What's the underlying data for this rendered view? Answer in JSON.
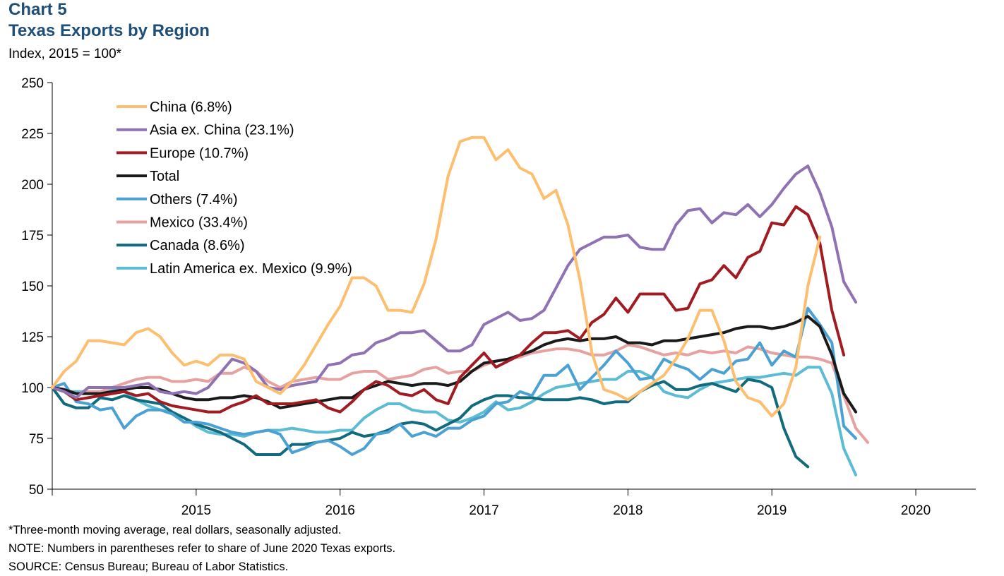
{
  "header": {
    "chart_number": "Chart 5",
    "title": "Texas Exports by Region",
    "subtitle": "Index, 2015 = 100*"
  },
  "notes": {
    "footnote": "*Three-month moving average, real dollars, seasonally adjusted.",
    "note": "NOTE: Numbers in parentheses refer to share of June 2020 Texas exports.",
    "source": "SOURCE: Census Bureau; Bureau of Labor Statistics."
  },
  "chart_data": {
    "type": "line",
    "ylim": [
      50,
      250
    ],
    "yticks": [
      50,
      75,
      100,
      125,
      150,
      175,
      200,
      225,
      250
    ],
    "xlim": [
      "2014-07",
      "2020-12"
    ],
    "x_start": "2014-07",
    "xticks": [
      {
        "label": "2015",
        "x": "2015-07"
      },
      {
        "label": "2016",
        "x": "2016-07"
      },
      {
        "label": "2017",
        "x": "2017-07"
      },
      {
        "label": "2018",
        "x": "2018-07"
      },
      {
        "label": "2019",
        "x": "2019-07"
      },
      {
        "label": "2020",
        "x": "2020-07"
      }
    ],
    "grid": false,
    "legend_position": "top-left",
    "series": [
      {
        "name": "China (6.8%)",
        "color": "#fbbf6f",
        "values": [
          100,
          108,
          113,
          123,
          123,
          122,
          121,
          127,
          129,
          125,
          117,
          111,
          113,
          111,
          116,
          116,
          114,
          103,
          100,
          97,
          103,
          111,
          121,
          131,
          140,
          154,
          154,
          150,
          138,
          138,
          137,
          151,
          173,
          204,
          221,
          223,
          223,
          212,
          217,
          208,
          205,
          193,
          197,
          180,
          153,
          117,
          99,
          97,
          94,
          98,
          102,
          106,
          114,
          124,
          138,
          138,
          123,
          103,
          95,
          93,
          86,
          92,
          110,
          150,
          174
        ]
      },
      {
        "name": "Asia ex. China (23.1%)",
        "color": "#8f72b2",
        "values": [
          100,
          98,
          95,
          100,
          100,
          100,
          100,
          101,
          102,
          98,
          97,
          98,
          97,
          100,
          107,
          114,
          112,
          108,
          100,
          99,
          101,
          102,
          103,
          111,
          112,
          116,
          117,
          122,
          124,
          127,
          127,
          128,
          123,
          118,
          118,
          121,
          131,
          134,
          137,
          133,
          134,
          138,
          149,
          160,
          168,
          171,
          174,
          174,
          175,
          169,
          168,
          168,
          180,
          187,
          188,
          181,
          186,
          185,
          190,
          184,
          190,
          198,
          205,
          209,
          196,
          179,
          152,
          142
        ]
      },
      {
        "name": "Europe (10.7%)",
        "color": "#a01c22",
        "values": [
          100,
          98,
          94,
          95,
          96,
          97,
          98,
          96,
          97,
          93,
          91,
          90,
          89,
          88,
          88,
          91,
          93,
          96,
          92,
          92,
          92,
          93,
          94,
          90,
          88,
          93,
          99,
          103,
          101,
          97,
          96,
          99,
          94,
          92,
          105,
          111,
          117,
          110,
          113,
          116,
          122,
          127,
          127,
          128,
          124,
          132,
          136,
          144,
          137,
          146,
          146,
          146,
          138,
          139,
          151,
          153,
          160,
          154,
          164,
          167,
          181,
          180,
          189,
          185,
          171,
          138,
          116
        ]
      },
      {
        "name": "Total",
        "color": "#1a1a1a",
        "values": [
          100,
          99,
          97,
          97,
          97,
          98,
          99,
          100,
          100,
          99,
          97,
          95,
          94,
          94,
          95,
          95,
          96,
          95,
          93,
          90,
          91,
          92,
          93,
          94,
          95,
          95,
          99,
          101,
          103,
          102,
          101,
          102,
          102,
          101,
          103,
          108,
          112,
          113,
          114,
          116,
          118,
          121,
          123,
          124,
          123,
          124,
          124,
          125,
          122,
          122,
          121,
          123,
          123,
          124,
          125,
          126,
          127,
          129,
          130,
          130,
          129,
          130,
          132,
          135,
          130,
          116,
          97,
          88
        ]
      },
      {
        "name": "Others (7.4%)",
        "color": "#4ba1d2",
        "values": [
          100,
          102,
          93,
          92,
          89,
          90,
          80,
          86,
          89,
          89,
          87,
          83,
          83,
          82,
          80,
          78,
          77,
          78,
          79,
          77,
          68,
          70,
          73,
          74,
          71,
          67,
          70,
          77,
          78,
          82,
          76,
          78,
          76,
          80,
          80,
          84,
          86,
          92,
          93,
          98,
          96,
          106,
          106,
          111,
          99,
          105,
          111,
          118,
          112,
          104,
          105,
          114,
          111,
          109,
          104,
          109,
          107,
          113,
          114,
          122,
          111,
          118,
          115,
          139,
          131,
          122,
          81,
          75
        ]
      },
      {
        "name": "Mexico (33.4%)",
        "color": "#e6a2a0",
        "values": [
          100,
          99,
          97,
          98,
          98,
          100,
          102,
          104,
          105,
          105,
          103,
          103,
          104,
          103,
          107,
          107,
          110,
          108,
          103,
          100,
          103,
          104,
          105,
          104,
          104,
          107,
          108,
          108,
          104,
          105,
          106,
          109,
          110,
          107,
          108,
          108,
          111,
          113,
          114,
          115,
          117,
          118,
          119,
          119,
          118,
          116,
          116,
          118,
          121,
          120,
          118,
          116,
          117,
          116,
          118,
          117,
          118,
          117,
          120,
          119,
          117,
          116,
          115,
          115,
          114,
          112,
          96,
          80,
          73
        ]
      },
      {
        "name": "Canada (8.6%)",
        "color": "#126b7c",
        "values": [
          100,
          92,
          90,
          90,
          95,
          94,
          96,
          94,
          93,
          92,
          88,
          85,
          82,
          80,
          78,
          75,
          72,
          67,
          67,
          67,
          72,
          72,
          73,
          74,
          75,
          78,
          76,
          77,
          79,
          82,
          83,
          82,
          79,
          82,
          85,
          91,
          94,
          96,
          96,
          95,
          95,
          94,
          94,
          94,
          95,
          94,
          92,
          93,
          93,
          98,
          101,
          103,
          99,
          99,
          101,
          102,
          100,
          98,
          104,
          103,
          100,
          80,
          66,
          61
        ]
      },
      {
        "name": "Latin America ex. Mexico (9.9%)",
        "color": "#5cbcd3",
        "values": [
          100,
          98,
          98,
          98,
          97,
          99,
          98,
          94,
          91,
          89,
          88,
          85,
          81,
          78,
          77,
          77,
          76,
          78,
          79,
          79,
          80,
          79,
          78,
          78,
          79,
          79,
          85,
          89,
          92,
          92,
          89,
          88,
          88,
          84,
          83,
          85,
          88,
          93,
          89,
          90,
          93,
          97,
          100,
          101,
          102,
          103,
          104,
          104,
          108,
          108,
          105,
          98,
          96,
          95,
          99,
          102,
          103,
          104,
          105,
          105,
          106,
          107,
          106,
          110,
          110,
          97,
          70,
          57
        ]
      }
    ]
  }
}
